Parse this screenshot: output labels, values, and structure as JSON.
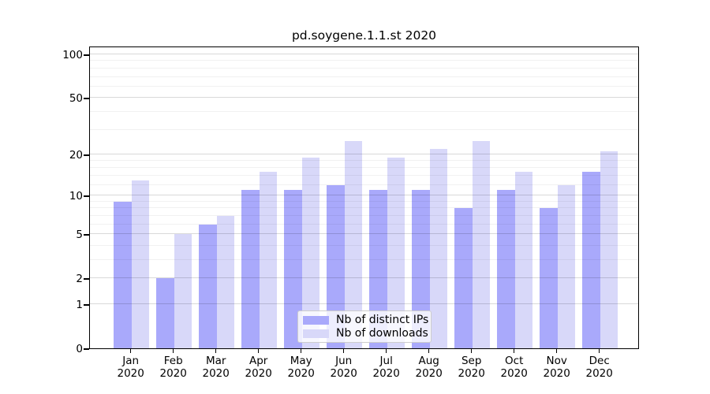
{
  "title": "pd.soygene.1.1.st 2020",
  "chart_data": {
    "type": "bar",
    "title": "pd.soygene.1.1.st 2020",
    "x_ticks": [
      {
        "month": "Jan",
        "year": "2020"
      },
      {
        "month": "Feb",
        "year": "2020"
      },
      {
        "month": "Mar",
        "year": "2020"
      },
      {
        "month": "Apr",
        "year": "2020"
      },
      {
        "month": "May",
        "year": "2020"
      },
      {
        "month": "Jun",
        "year": "2020"
      },
      {
        "month": "Jul",
        "year": "2020"
      },
      {
        "month": "Aug",
        "year": "2020"
      },
      {
        "month": "Sep",
        "year": "2020"
      },
      {
        "month": "Oct",
        "year": "2020"
      },
      {
        "month": "Nov",
        "year": "2020"
      },
      {
        "month": "Dec",
        "year": "2020"
      }
    ],
    "series": [
      {
        "name": "Nb of distinct IPs",
        "color": "#a9a9fb",
        "values": [
          9,
          2,
          6,
          11,
          11,
          12,
          11,
          11,
          8,
          11,
          8,
          15
        ]
      },
      {
        "name": "Nb of downloads",
        "color": "#d8d8f9",
        "values": [
          13,
          5,
          7,
          15,
          19,
          25,
          19,
          22,
          25,
          15,
          12,
          21
        ]
      }
    ],
    "y_axis": {
      "scale": "log1p",
      "major_ticks": [
        0,
        1,
        2,
        5,
        10,
        20,
        50,
        100
      ],
      "minor_gridlines": [
        3,
        4,
        6,
        7,
        8,
        9,
        12,
        14,
        16,
        18,
        30,
        40,
        60,
        70,
        80,
        90
      ],
      "range": [
        0,
        100
      ]
    },
    "legend": {
      "position": "lower-center"
    },
    "grid": "on",
    "colors": {
      "bar_distinct_ips": "#a9a9fb",
      "bar_downloads": "#d8d8f9",
      "grid_major": "#d9d9d9",
      "grid_minor": "#efefef",
      "axis": "#000000"
    }
  }
}
